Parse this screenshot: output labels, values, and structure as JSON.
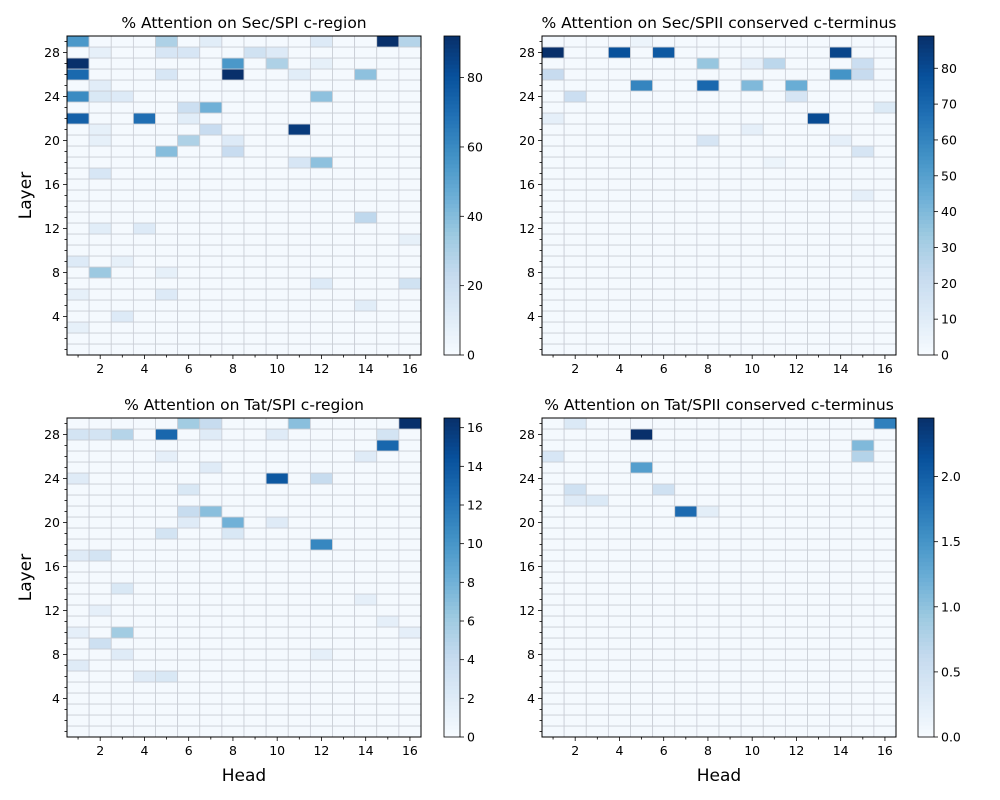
{
  "colormap": {
    "name": "Blues",
    "low": "#f7fbff",
    "high": "#08306b",
    "gridline": "#c8ccd4"
  },
  "chart_data": [
    {
      "type": "heatmap",
      "title": "% Attention on Sec/SPI c-region",
      "xlabel": "",
      "ylabel": "Layer",
      "x_ticks": [
        "2",
        "4",
        "6",
        "8",
        "10",
        "12",
        "14",
        "16"
      ],
      "y_ticks": [
        "4",
        "8",
        "12",
        "16",
        "20",
        "24",
        "28"
      ],
      "n_heads": 16,
      "n_layers": 29,
      "vmin": 0,
      "vmax": 92,
      "colorbar_ticks": [
        "0",
        "20",
        "40",
        "60",
        "80"
      ],
      "cells": [
        {
          "layer": 29,
          "head": 1,
          "value": 55
        },
        {
          "layer": 29,
          "head": 5,
          "value": 30
        },
        {
          "layer": 29,
          "head": 7,
          "value": 10
        },
        {
          "layer": 29,
          "head": 12,
          "value": 12
        },
        {
          "layer": 29,
          "head": 15,
          "value": 92
        },
        {
          "layer": 29,
          "head": 16,
          "value": 28
        },
        {
          "layer": 28,
          "head": 2,
          "value": 8
        },
        {
          "layer": 28,
          "head": 5,
          "value": 15
        },
        {
          "layer": 28,
          "head": 6,
          "value": 15
        },
        {
          "layer": 28,
          "head": 9,
          "value": 18
        },
        {
          "layer": 28,
          "head": 10,
          "value": 12
        },
        {
          "layer": 27,
          "head": 1,
          "value": 92
        },
        {
          "layer": 27,
          "head": 8,
          "value": 55
        },
        {
          "layer": 27,
          "head": 10,
          "value": 30
        },
        {
          "layer": 27,
          "head": 12,
          "value": 8
        },
        {
          "layer": 26,
          "head": 1,
          "value": 72
        },
        {
          "layer": 26,
          "head": 5,
          "value": 15
        },
        {
          "layer": 26,
          "head": 8,
          "value": 92
        },
        {
          "layer": 26,
          "head": 11,
          "value": 10
        },
        {
          "layer": 26,
          "head": 14,
          "value": 38
        },
        {
          "layer": 25,
          "head": 2,
          "value": 10
        },
        {
          "layer": 24,
          "head": 1,
          "value": 60
        },
        {
          "layer": 24,
          "head": 2,
          "value": 14
        },
        {
          "layer": 24,
          "head": 3,
          "value": 12
        },
        {
          "layer": 24,
          "head": 12,
          "value": 38
        },
        {
          "layer": 23,
          "head": 6,
          "value": 20
        },
        {
          "layer": 23,
          "head": 7,
          "value": 45
        },
        {
          "layer": 22,
          "head": 1,
          "value": 75
        },
        {
          "layer": 22,
          "head": 4,
          "value": 70
        },
        {
          "layer": 22,
          "head": 6,
          "value": 10
        },
        {
          "layer": 21,
          "head": 2,
          "value": 8
        },
        {
          "layer": 21,
          "head": 7,
          "value": 22
        },
        {
          "layer": 21,
          "head": 11,
          "value": 88
        },
        {
          "layer": 20,
          "head": 2,
          "value": 8
        },
        {
          "layer": 20,
          "head": 6,
          "value": 30
        },
        {
          "layer": 20,
          "head": 8,
          "value": 12
        },
        {
          "layer": 19,
          "head": 5,
          "value": 40
        },
        {
          "layer": 19,
          "head": 8,
          "value": 22
        },
        {
          "layer": 18,
          "head": 11,
          "value": 15
        },
        {
          "layer": 18,
          "head": 12,
          "value": 38
        },
        {
          "layer": 17,
          "head": 2,
          "value": 15
        },
        {
          "layer": 13,
          "head": 14,
          "value": 25
        },
        {
          "layer": 12,
          "head": 2,
          "value": 10
        },
        {
          "layer": 12,
          "head": 4,
          "value": 12
        },
        {
          "layer": 11,
          "head": 16,
          "value": 8
        },
        {
          "layer": 9,
          "head": 1,
          "value": 12
        },
        {
          "layer": 9,
          "head": 3,
          "value": 8
        },
        {
          "layer": 8,
          "head": 2,
          "value": 35
        },
        {
          "layer": 8,
          "head": 5,
          "value": 8
        },
        {
          "layer": 7,
          "head": 12,
          "value": 12
        },
        {
          "layer": 7,
          "head": 16,
          "value": 18
        },
        {
          "layer": 6,
          "head": 1,
          "value": 8
        },
        {
          "layer": 6,
          "head": 5,
          "value": 12
        },
        {
          "layer": 5,
          "head": 14,
          "value": 10
        },
        {
          "layer": 4,
          "head": 3,
          "value": 12
        },
        {
          "layer": 3,
          "head": 1,
          "value": 8
        }
      ]
    },
    {
      "type": "heatmap",
      "title": "% Attention on Sec/SPII conserved c-terminus",
      "xlabel": "",
      "ylabel": "",
      "x_ticks": [
        "2",
        "4",
        "6",
        "8",
        "10",
        "12",
        "14",
        "16"
      ],
      "y_ticks": [
        "4",
        "8",
        "12",
        "16",
        "20",
        "24",
        "28"
      ],
      "n_heads": 16,
      "n_layers": 29,
      "vmin": 0,
      "vmax": 89,
      "colorbar_ticks": [
        "0",
        "10",
        "20",
        "30",
        "40",
        "50",
        "60",
        "70",
        "80"
      ],
      "cells": [
        {
          "layer": 29,
          "head": 5,
          "value": 5
        },
        {
          "layer": 28,
          "head": 1,
          "value": 89
        },
        {
          "layer": 28,
          "head": 4,
          "value": 78
        },
        {
          "layer": 28,
          "head": 6,
          "value": 75
        },
        {
          "layer": 28,
          "head": 14,
          "value": 82
        },
        {
          "layer": 27,
          "head": 8,
          "value": 35
        },
        {
          "layer": 27,
          "head": 10,
          "value": 8
        },
        {
          "layer": 27,
          "head": 11,
          "value": 25
        },
        {
          "layer": 27,
          "head": 15,
          "value": 20
        },
        {
          "layer": 26,
          "head": 1,
          "value": 22
        },
        {
          "layer": 26,
          "head": 14,
          "value": 55
        },
        {
          "layer": 26,
          "head": 15,
          "value": 22
        },
        {
          "layer": 25,
          "head": 5,
          "value": 60
        },
        {
          "layer": 25,
          "head": 8,
          "value": 70
        },
        {
          "layer": 25,
          "head": 10,
          "value": 40
        },
        {
          "layer": 25,
          "head": 12,
          "value": 45
        },
        {
          "layer": 24,
          "head": 2,
          "value": 20
        },
        {
          "layer": 24,
          "head": 12,
          "value": 15
        },
        {
          "layer": 23,
          "head": 16,
          "value": 12
        },
        {
          "layer": 22,
          "head": 1,
          "value": 8
        },
        {
          "layer": 22,
          "head": 13,
          "value": 80
        },
        {
          "layer": 21,
          "head": 10,
          "value": 8
        },
        {
          "layer": 20,
          "head": 8,
          "value": 15
        },
        {
          "layer": 20,
          "head": 14,
          "value": 8
        },
        {
          "layer": 19,
          "head": 15,
          "value": 15
        },
        {
          "layer": 18,
          "head": 11,
          "value": 5
        },
        {
          "layer": 15,
          "head": 15,
          "value": 8
        }
      ]
    },
    {
      "type": "heatmap",
      "title": "% Attention on Tat/SPI c-region",
      "xlabel": "Head",
      "ylabel": "Layer",
      "x_ticks": [
        "2",
        "4",
        "6",
        "8",
        "10",
        "12",
        "14",
        "16"
      ],
      "y_ticks": [
        "4",
        "8",
        "12",
        "16",
        "20",
        "24",
        "28"
      ],
      "n_heads": 16,
      "n_layers": 29,
      "vmin": 0,
      "vmax": 16.5,
      "colorbar_ticks": [
        "0",
        "2",
        "4",
        "6",
        "8",
        "10",
        "12",
        "14",
        "16"
      ],
      "cells": [
        {
          "layer": 29,
          "head": 6,
          "value": 6
        },
        {
          "layer": 29,
          "head": 7,
          "value": 4
        },
        {
          "layer": 29,
          "head": 11,
          "value": 7
        },
        {
          "layer": 29,
          "head": 16,
          "value": 16.5
        },
        {
          "layer": 28,
          "head": 1,
          "value": 3
        },
        {
          "layer": 28,
          "head": 2,
          "value": 3
        },
        {
          "layer": 28,
          "head": 3,
          "value": 5
        },
        {
          "layer": 28,
          "head": 5,
          "value": 13
        },
        {
          "layer": 28,
          "head": 7,
          "value": 2
        },
        {
          "layer": 28,
          "head": 10,
          "value": 2
        },
        {
          "layer": 28,
          "head": 15,
          "value": 3
        },
        {
          "layer": 27,
          "head": 15,
          "value": 13
        },
        {
          "layer": 26,
          "head": 5,
          "value": 1.5
        },
        {
          "layer": 26,
          "head": 14,
          "value": 2
        },
        {
          "layer": 25,
          "head": 7,
          "value": 2
        },
        {
          "layer": 24,
          "head": 1,
          "value": 2
        },
        {
          "layer": 24,
          "head": 10,
          "value": 14
        },
        {
          "layer": 24,
          "head": 12,
          "value": 4
        },
        {
          "layer": 23,
          "head": 6,
          "value": 2.5
        },
        {
          "layer": 21,
          "head": 6,
          "value": 4
        },
        {
          "layer": 21,
          "head": 7,
          "value": 7
        },
        {
          "layer": 20,
          "head": 6,
          "value": 2
        },
        {
          "layer": 20,
          "head": 8,
          "value": 8
        },
        {
          "layer": 20,
          "head": 10,
          "value": 2
        },
        {
          "layer": 19,
          "head": 5,
          "value": 3
        },
        {
          "layer": 19,
          "head": 8,
          "value": 2.5
        },
        {
          "layer": 18,
          "head": 12,
          "value": 11
        },
        {
          "layer": 17,
          "head": 1,
          "value": 2
        },
        {
          "layer": 17,
          "head": 2,
          "value": 3
        },
        {
          "layer": 14,
          "head": 3,
          "value": 2.5
        },
        {
          "layer": 13,
          "head": 14,
          "value": 1.5
        },
        {
          "layer": 12,
          "head": 2,
          "value": 1.5
        },
        {
          "layer": 11,
          "head": 15,
          "value": 1.5
        },
        {
          "layer": 10,
          "head": 1,
          "value": 1.5
        },
        {
          "layer": 10,
          "head": 3,
          "value": 6
        },
        {
          "layer": 10,
          "head": 16,
          "value": 1.5
        },
        {
          "layer": 9,
          "head": 2,
          "value": 3.5
        },
        {
          "layer": 8,
          "head": 3,
          "value": 2
        },
        {
          "layer": 8,
          "head": 12,
          "value": 1.5
        },
        {
          "layer": 7,
          "head": 1,
          "value": 2
        },
        {
          "layer": 6,
          "head": 4,
          "value": 2
        },
        {
          "layer": 6,
          "head": 5,
          "value": 2.5
        }
      ]
    },
    {
      "type": "heatmap",
      "title": "% Attention on Tat/SPII conserved c-terminus",
      "xlabel": "Head",
      "ylabel": "",
      "x_ticks": [
        "2",
        "4",
        "6",
        "8",
        "10",
        "12",
        "14",
        "16"
      ],
      "y_ticks": [
        "4",
        "8",
        "12",
        "16",
        "20",
        "24",
        "28"
      ],
      "n_heads": 16,
      "n_layers": 29,
      "vmin": 0,
      "vmax": 2.45,
      "colorbar_ticks": [
        "0.0",
        "0.5",
        "1.0",
        "1.5",
        "2.0"
      ],
      "cells": [
        {
          "layer": 29,
          "head": 2,
          "value": 0.35
        },
        {
          "layer": 29,
          "head": 16,
          "value": 1.7
        },
        {
          "layer": 28,
          "head": 5,
          "value": 2.45
        },
        {
          "layer": 27,
          "head": 15,
          "value": 1.1
        },
        {
          "layer": 26,
          "head": 1,
          "value": 0.4
        },
        {
          "layer": 26,
          "head": 15,
          "value": 0.75
        },
        {
          "layer": 25,
          "head": 5,
          "value": 1.4
        },
        {
          "layer": 23,
          "head": 2,
          "value": 0.5
        },
        {
          "layer": 23,
          "head": 6,
          "value": 0.5
        },
        {
          "layer": 22,
          "head": 2,
          "value": 0.3
        },
        {
          "layer": 22,
          "head": 3,
          "value": 0.35
        },
        {
          "layer": 21,
          "head": 7,
          "value": 1.9
        },
        {
          "layer": 21,
          "head": 8,
          "value": 0.25
        }
      ]
    }
  ]
}
